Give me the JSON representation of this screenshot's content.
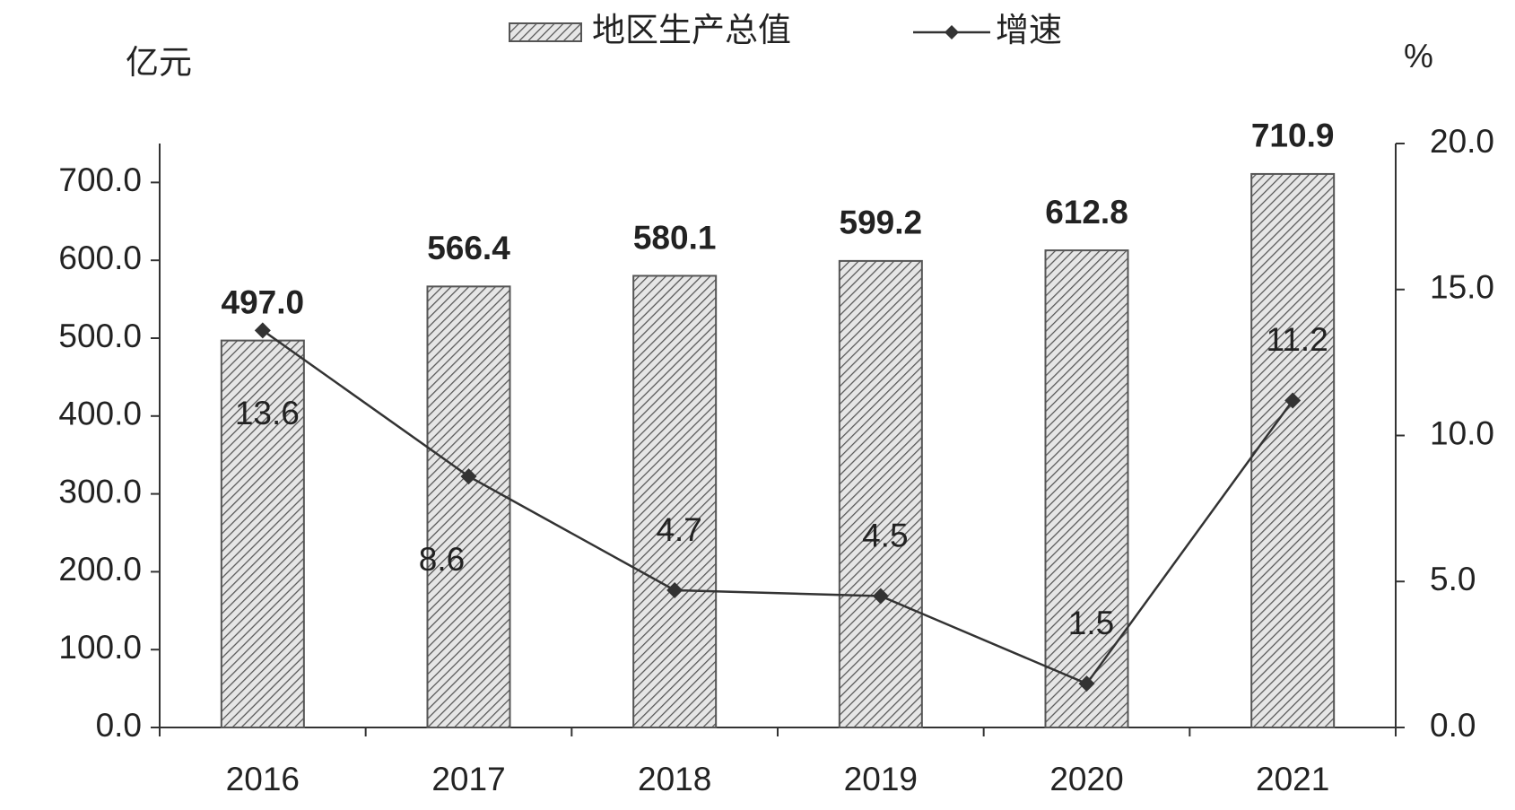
{
  "chart_data": {
    "type": "combo",
    "y_label": "亿元",
    "y2_label": "%",
    "categories": [
      "2016",
      "2017",
      "2018",
      "2019",
      "2020",
      "2021"
    ],
    "series": [
      {
        "name": "地区生产总值",
        "type": "bar",
        "axis": "y",
        "color": "#555555",
        "values": [
          497.0,
          566.4,
          580.1,
          599.2,
          612.8,
          710.9
        ],
        "value_labels": [
          "497.0",
          "566.4",
          "580.1",
          "599.2",
          "612.8",
          "710.9"
        ]
      },
      {
        "name": "增速",
        "type": "line",
        "axis": "y2",
        "color": "#333333",
        "values": [
          13.6,
          8.6,
          4.7,
          4.5,
          1.5,
          11.2
        ]
      }
    ],
    "ylim": [
      0,
      750
    ],
    "yticks": [
      {
        "value": 0,
        "label": "0.0"
      },
      {
        "value": 100,
        "label": "100.0"
      },
      {
        "value": 200,
        "label": "200.0"
      },
      {
        "value": 300,
        "label": "300.0"
      },
      {
        "value": 400,
        "label": "400.0"
      },
      {
        "value": 500,
        "label": "500.0"
      },
      {
        "value": 600,
        "label": "600.0"
      },
      {
        "value": 700,
        "label": "700.0"
      }
    ],
    "y2lim": [
      0,
      20
    ],
    "y2ticks": [
      {
        "value": 0,
        "label": "0.0"
      },
      {
        "value": 5,
        "label": "5.0"
      },
      {
        "value": 10,
        "label": "10.0"
      },
      {
        "value": 15,
        "label": "15.0"
      },
      {
        "value": 20,
        "label": "20.0"
      }
    ],
    "grid": false
  }
}
